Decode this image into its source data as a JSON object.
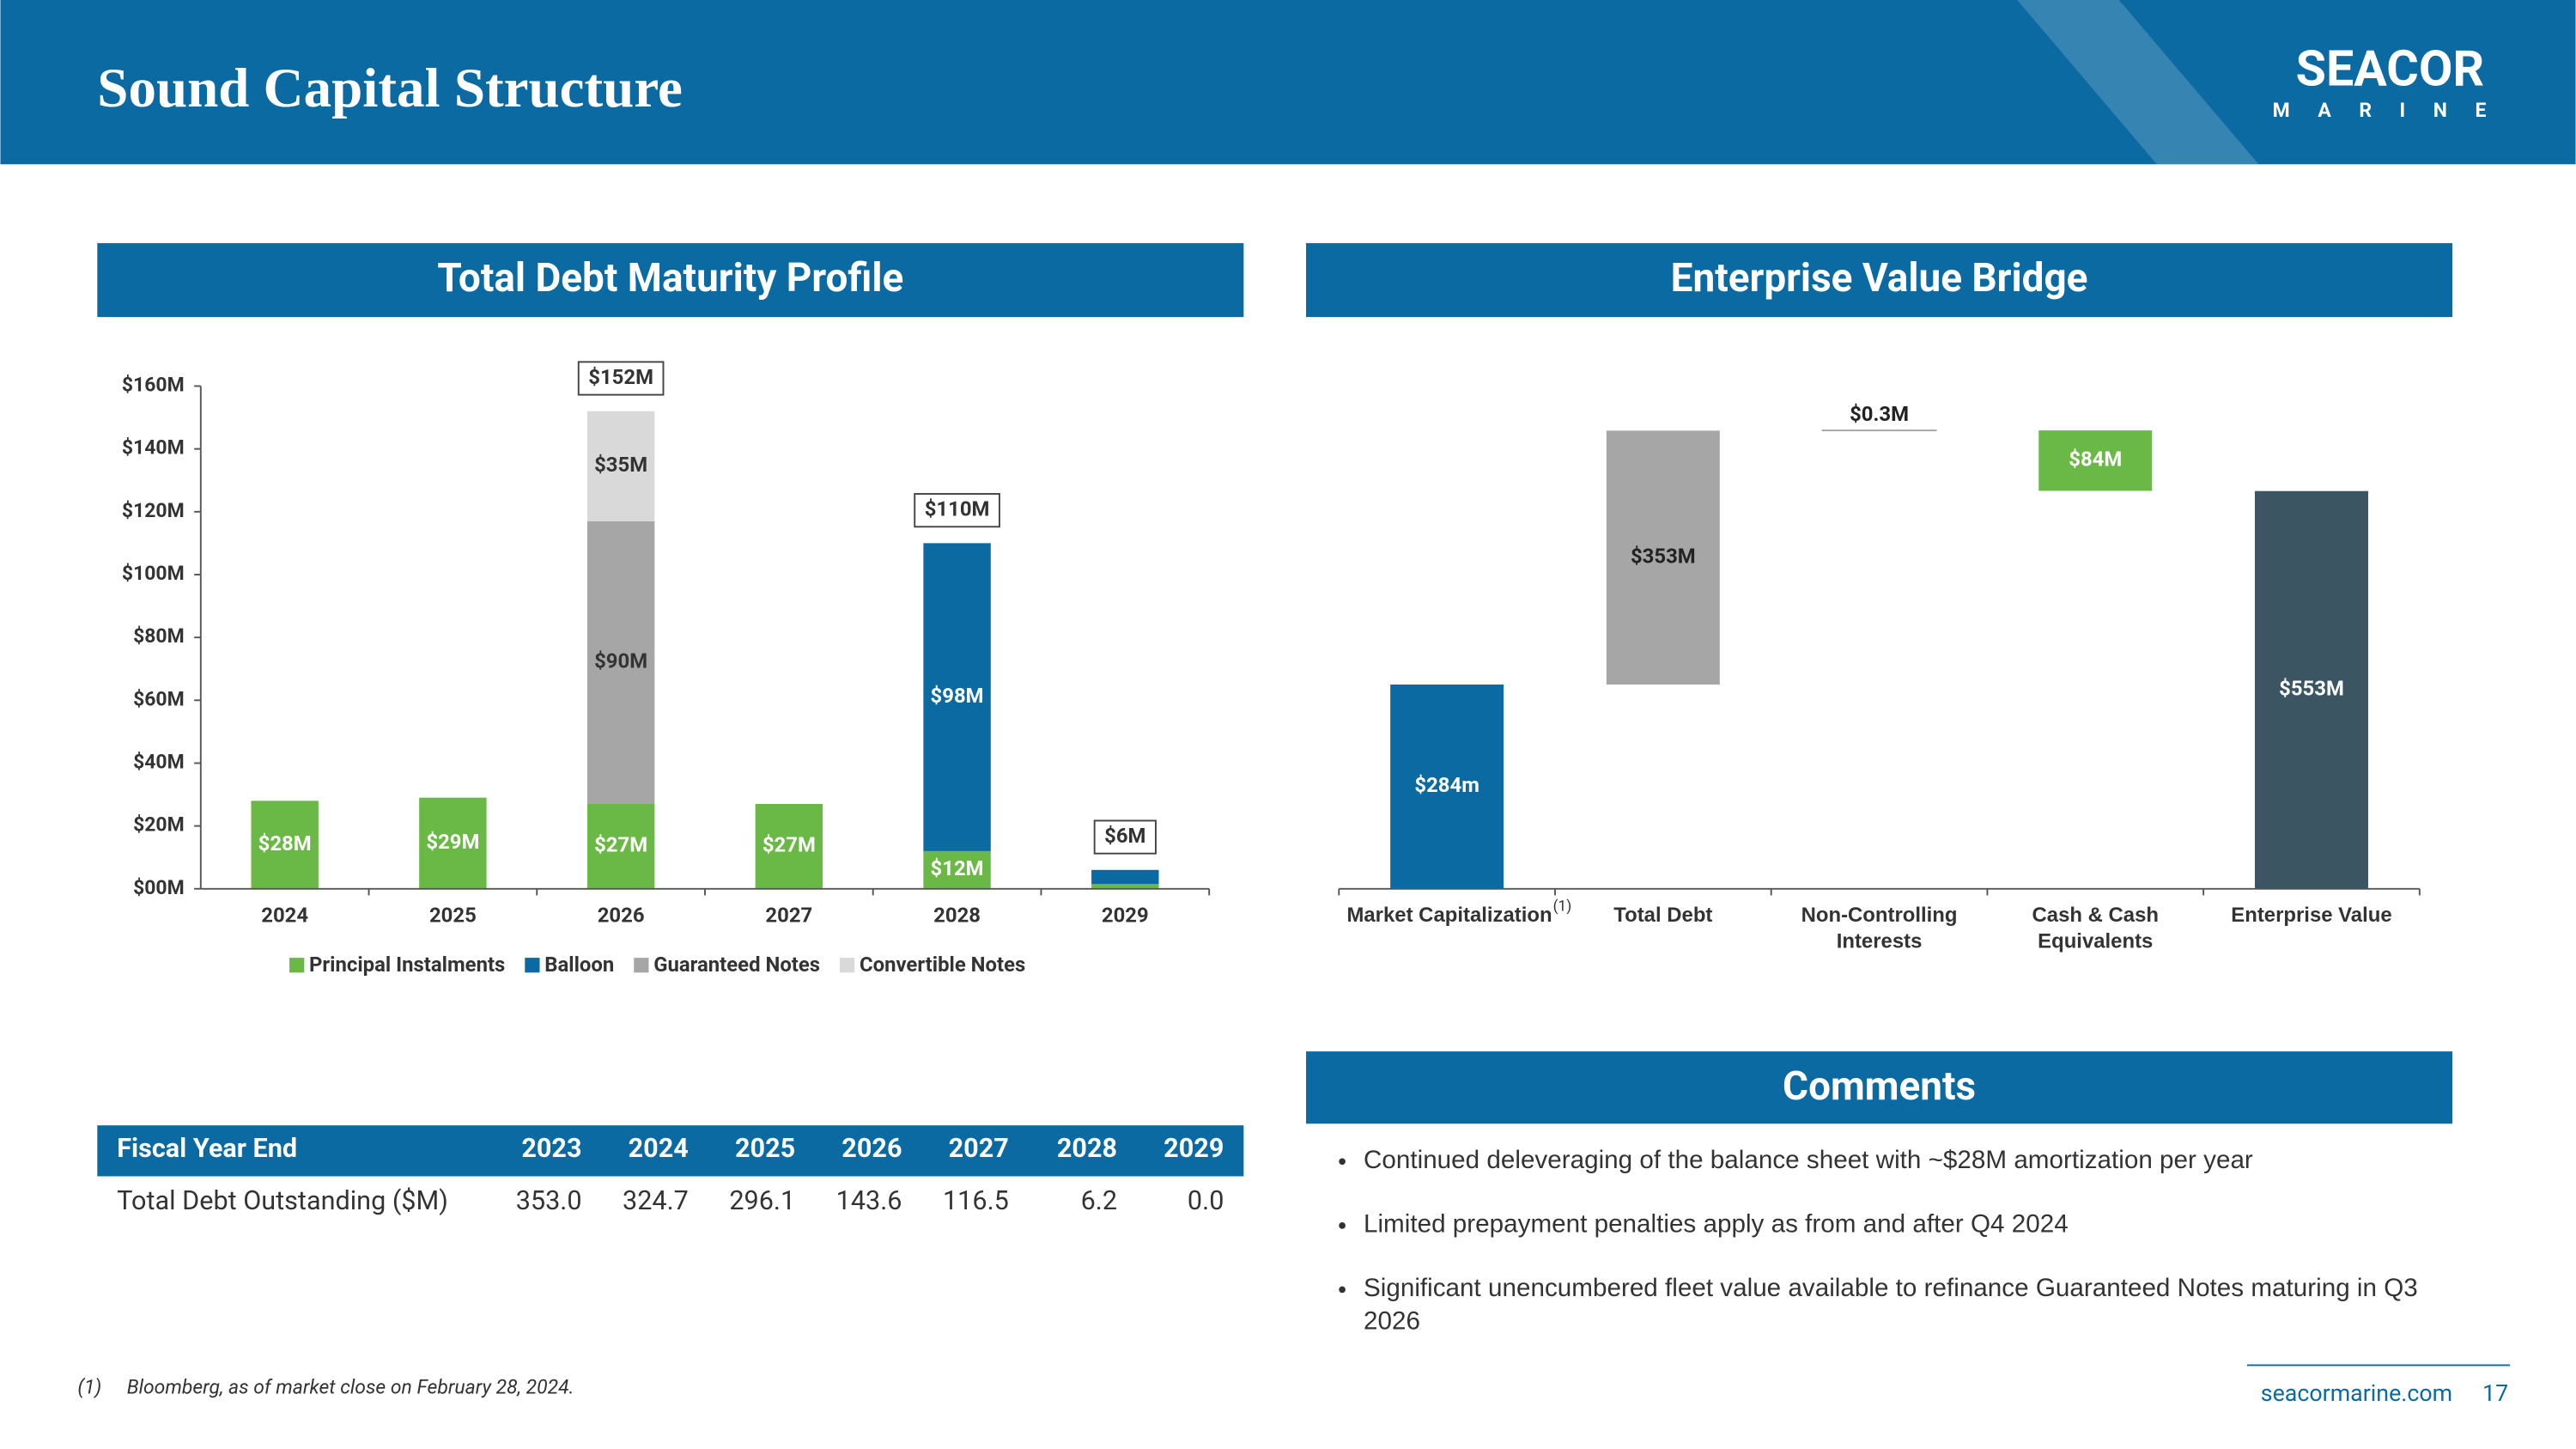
{
  "header": {
    "title": "Sound Capital Structure",
    "logo": "SEACOR",
    "logo_sub": "MARINE"
  },
  "sections": [
    "Total Debt Maturity Profile",
    "Enterprise Value Bridge",
    "Comments"
  ],
  "chart_data": [
    {
      "type": "stacked_bar",
      "categories": [
        "2024",
        "2025",
        "2026",
        "2027",
        "2028",
        "2029"
      ],
      "series": [
        {
          "name": "Principal Instalments",
          "color": "#6ab845",
          "values": [
            28,
            29,
            27,
            27,
            12,
            1.5
          ],
          "value_labels": [
            "$28M",
            "$29M",
            "$27M",
            "$27M",
            "$12M",
            null
          ]
        },
        {
          "name": "Balloon",
          "color": "#0a6aa1",
          "values": [
            null,
            null,
            null,
            null,
            98,
            4.5
          ],
          "value_labels": [
            null,
            null,
            null,
            null,
            "$98M",
            null
          ]
        },
        {
          "name": "Guaranteed Notes",
          "color": "#a6a6a6",
          "values": [
            null,
            null,
            90,
            null,
            null,
            null
          ],
          "value_labels": [
            null,
            null,
            "$90M",
            null,
            null,
            null
          ]
        },
        {
          "name": "Convertible Notes",
          "color": "#d9d9d9",
          "values": [
            null,
            null,
            35,
            null,
            null,
            null
          ],
          "value_labels": [
            null,
            null,
            "$35M",
            null,
            null,
            null
          ]
        }
      ],
      "ylim": [
        0,
        160
      ],
      "yticks": [
        {
          "value": 0,
          "label": "$00M"
        },
        {
          "value": 20,
          "label": "$20M"
        },
        {
          "value": 40,
          "label": "$40M"
        },
        {
          "value": 60,
          "label": "$60M"
        },
        {
          "value": 80,
          "label": "$80M"
        },
        {
          "value": 100,
          "label": "$100M"
        },
        {
          "value": 120,
          "label": "$120M"
        },
        {
          "value": 140,
          "label": "$140M"
        },
        {
          "value": 160,
          "label": "$160M"
        }
      ],
      "annotations": [
        {
          "x": "2026",
          "text": "$152M"
        },
        {
          "x": "2028",
          "text": "$110M"
        },
        {
          "x": "2029",
          "text": "$6M"
        }
      ],
      "legend": "bottom"
    },
    {
      "type": "waterfall",
      "categories": [
        "Market Capitalization",
        "Total Debt",
        "Non-Controlling Interests",
        "Cash & Cash Equivalents",
        "Enterprise Value"
      ],
      "values": [
        284,
        353,
        0.3,
        -84,
        553
      ],
      "value_labels": [
        "$284m",
        "$353M",
        "$0.3M",
        "$84M",
        "$553M"
      ],
      "colors": [
        "#0a6aa1",
        "#a6a6a6",
        "#a6a6a6",
        "#6ab845",
        "#3b5563"
      ],
      "note": "(1)"
    }
  ],
  "table": {
    "header": [
      "Fiscal Year End",
      "2023",
      "2024",
      "2025",
      "2026",
      "2027",
      "2028",
      "2029"
    ],
    "rows": [
      [
        "Total Debt Outstanding ($M)",
        "353.0",
        "324.7",
        "296.1",
        "143.6",
        "116.5",
        "6.2",
        "0.0"
      ]
    ]
  },
  "comments": [
    "Continued deleveraging of the balance sheet with ~$28M amortization per year",
    "Limited prepayment penalties apply as from and after Q4 2024",
    "Significant unencumbered fleet value available to refinance Guaranteed Notes maturing in Q3 2026"
  ],
  "footnote": {
    "marker": "(1)",
    "text": "Bloomberg, as of market close on February 28, 2024."
  },
  "footer": {
    "url": "seacormarine.com",
    "page": "17"
  }
}
